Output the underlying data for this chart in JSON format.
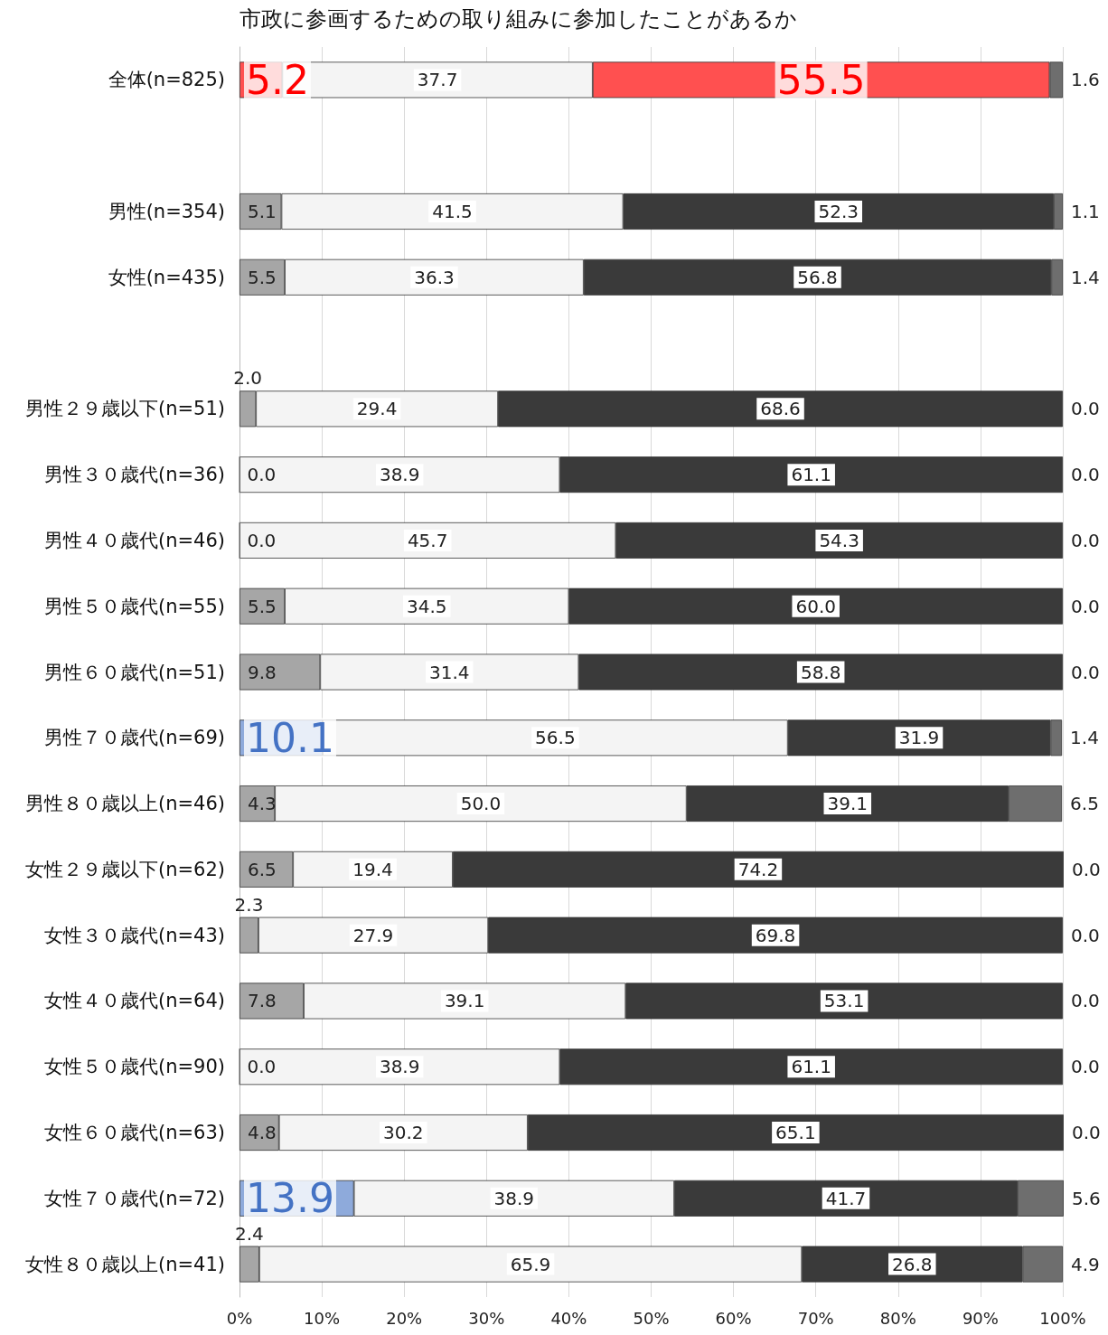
{
  "chart_data": {
    "type": "bar",
    "orientation": "horizontal",
    "stacked": true,
    "title": "市政に参画するための取り組みに参加したことがあるか",
    "categories": [
      "全体(n=825)",
      null,
      "男性(n=354)",
      "女性(n=435)",
      null,
      "男性２９歳以下(n=51)",
      "男性３０歳代(n=36)",
      "男性４０歳代(n=46)",
      "男性５０歳代(n=55)",
      "男性６０歳代(n=51)",
      "男性７０歳代(n=69)",
      "男性８０歳以上(n=46)",
      "女性２９歳以下(n=62)",
      "女性３０歳代(n=43)",
      "女性４０歳代(n=64)",
      "女性５０歳代(n=90)",
      "女性６０歳代(n=63)",
      "女性７０歳代(n=72)",
      "女性８０歳以上(n=41)"
    ],
    "series": [
      {
        "color": "#a6a6a6",
        "colors": [
          "#ff5050",
          null,
          "#a6a6a6",
          "#a6a6a6",
          null,
          "#a6a6a6",
          "#a6a6a6",
          "#a6a6a6",
          "#a6a6a6",
          "#a6a6a6",
          "#8eaadb",
          "#a6a6a6",
          "#a6a6a6",
          "#a6a6a6",
          "#a6a6a6",
          "#a6a6a6",
          "#a6a6a6",
          "#8eaadb",
          "#a6a6a6"
        ],
        "values": [
          5.2,
          null,
          5.1,
          5.5,
          null,
          2.0,
          0.0,
          0.0,
          5.5,
          9.8,
          10.1,
          4.3,
          6.5,
          2.3,
          7.8,
          0.0,
          4.8,
          13.9,
          2.4
        ],
        "value_labels": [
          "5.2",
          null,
          "5.1",
          "5.5",
          null,
          "2.0",
          "0.0",
          "0.0",
          "5.5",
          "9.8",
          "10.1",
          "4.3",
          "6.5",
          "2.3",
          "7.8",
          "0.0",
          "4.8",
          "13.9",
          "2.4"
        ]
      },
      {
        "color": "#f4f4f4",
        "values": [
          37.7,
          null,
          41.5,
          36.3,
          null,
          29.4,
          38.9,
          45.7,
          34.5,
          31.4,
          56.5,
          50.0,
          19.4,
          27.9,
          39.1,
          38.9,
          30.2,
          38.9,
          65.9
        ],
        "value_labels": [
          "37.7",
          null,
          "41.5",
          "36.3",
          null,
          "29.4",
          "38.9",
          "45.7",
          "34.5",
          "31.4",
          "56.5",
          "50.0",
          "19.4",
          "27.9",
          "39.1",
          "38.9",
          "30.2",
          "38.9",
          "65.9"
        ]
      },
      {
        "color": "#3a3a3a",
        "colors": [
          "#ff5050",
          null,
          "#3a3a3a",
          "#3a3a3a",
          null,
          "#3a3a3a",
          "#3a3a3a",
          "#3a3a3a",
          "#3a3a3a",
          "#3a3a3a",
          "#3a3a3a",
          "#3a3a3a",
          "#3a3a3a",
          "#3a3a3a",
          "#3a3a3a",
          "#3a3a3a",
          "#3a3a3a",
          "#3a3a3a",
          "#3a3a3a"
        ],
        "values": [
          55.5,
          null,
          52.3,
          56.8,
          null,
          68.6,
          61.1,
          54.3,
          60.0,
          58.8,
          31.9,
          39.1,
          74.2,
          69.8,
          53.1,
          61.1,
          65.1,
          41.7,
          26.8
        ],
        "value_labels": [
          "55.5",
          null,
          "52.3",
          "56.8",
          null,
          "68.6",
          "61.1",
          "54.3",
          "60.0",
          "58.8",
          "31.9",
          "39.1",
          "74.2",
          "69.8",
          "53.1",
          "61.1",
          "65.1",
          "41.7",
          "26.8"
        ]
      },
      {
        "color": "#6e6e6e",
        "values": [
          1.6,
          null,
          1.1,
          1.4,
          null,
          0.0,
          0.0,
          0.0,
          0.0,
          0.0,
          1.4,
          6.5,
          0.0,
          0.0,
          0.0,
          0.0,
          0.0,
          5.6,
          4.9
        ],
        "value_labels": [
          "1.6",
          null,
          "1.1",
          "1.4",
          null,
          "0.0",
          "0.0",
          "0.0",
          "0.0",
          "0.0",
          "1.4",
          "6.5",
          "0.0",
          "0.0",
          "0.0",
          "0.0",
          "0.0",
          "5.6",
          "4.9"
        ]
      }
    ],
    "xlim": [
      0,
      100
    ],
    "xticks": [
      {
        "value": 0,
        "label": "0%"
      },
      {
        "value": 10,
        "label": "10%"
      },
      {
        "value": 20,
        "label": "20%"
      },
      {
        "value": 30,
        "label": "30%"
      },
      {
        "value": 40,
        "label": "40%"
      },
      {
        "value": 50,
        "label": "50%"
      },
      {
        "value": 60,
        "label": "60%"
      },
      {
        "value": 70,
        "label": "70%"
      },
      {
        "value": 80,
        "label": "80%"
      },
      {
        "value": 90,
        "label": "90%"
      },
      {
        "value": 100,
        "label": "100%"
      }
    ],
    "grid": "x"
  }
}
